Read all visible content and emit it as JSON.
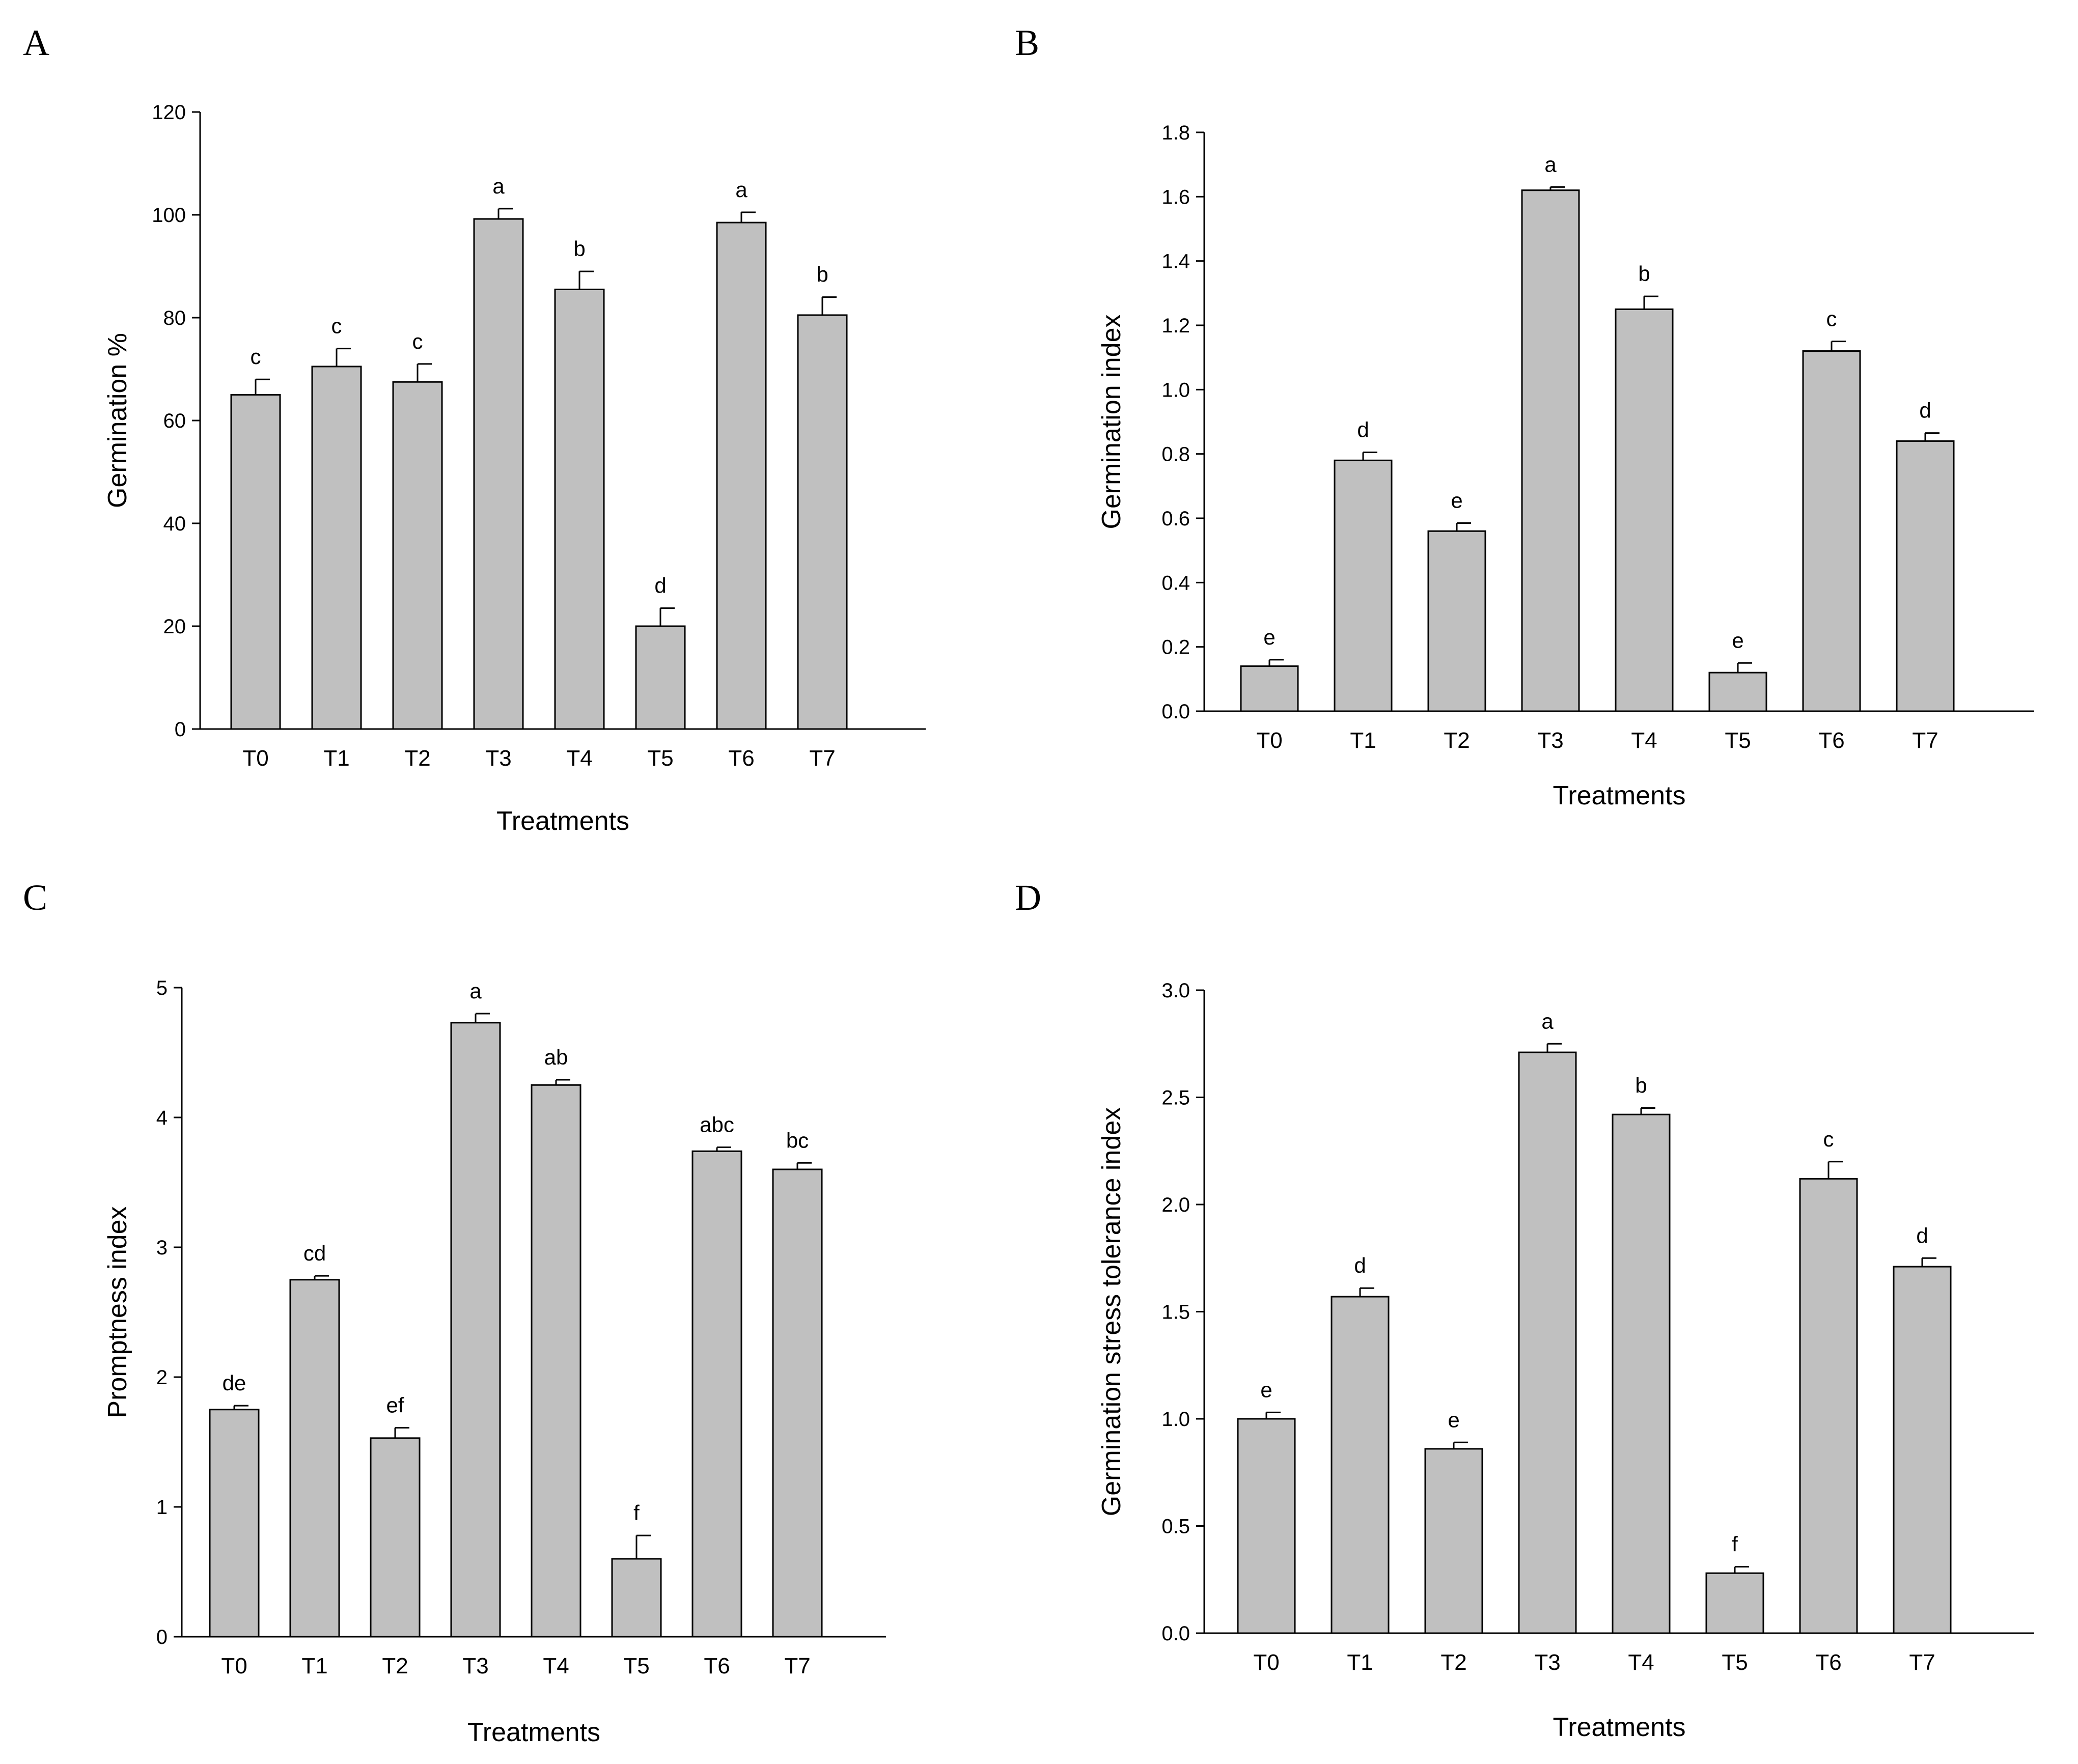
{
  "chart_data": [
    {
      "panel": "A",
      "type": "bar",
      "title": "",
      "xlabel": "Treatments",
      "ylabel": "Germination %",
      "categories": [
        "T0",
        "T1",
        "T2",
        "T3",
        "T4",
        "T5",
        "T6",
        "T7"
      ],
      "values": [
        65,
        70.5,
        67.5,
        99.2,
        85.5,
        20,
        98.5,
        80.5
      ],
      "errors": [
        3,
        3.5,
        3.5,
        2,
        3.5,
        3.5,
        2,
        3.5
      ],
      "letters": [
        "c",
        "c",
        "c",
        "a",
        "b",
        "d",
        "a",
        "b"
      ],
      "ylim": [
        0,
        120
      ],
      "yticks": [
        0,
        20,
        40,
        60,
        80,
        100,
        120
      ],
      "ytick_labels": [
        "0",
        "20",
        "40",
        "60",
        "80",
        "100",
        "120"
      ],
      "grid": false
    },
    {
      "panel": "B",
      "type": "bar",
      "title": "",
      "xlabel": "Treatments",
      "ylabel": "Germination index",
      "categories": [
        "T0",
        "T1",
        "T2",
        "T3",
        "T4",
        "T5",
        "T6",
        "T7"
      ],
      "values": [
        0.14,
        0.78,
        0.56,
        1.62,
        1.25,
        0.12,
        1.12,
        0.84
      ],
      "errors": [
        0.02,
        0.025,
        0.025,
        0.01,
        0.04,
        0.03,
        0.03,
        0.025
      ],
      "letters": [
        "e",
        "d",
        "e",
        "a",
        "b",
        "e",
        "c",
        "d"
      ],
      "ylim": [
        0,
        1.8
      ],
      "yticks": [
        0,
        0.2,
        0.4,
        0.6,
        0.8,
        1.0,
        1.2,
        1.4,
        1.6,
        1.8
      ],
      "ytick_labels": [
        "0.0",
        "0.2",
        "0.4",
        "0.6",
        "0.8",
        "1.0",
        "1.2",
        "1.4",
        "1.6",
        "1.8"
      ],
      "grid": false
    },
    {
      "panel": "C",
      "type": "bar",
      "title": "",
      "xlabel": "Treatments",
      "ylabel": "Promptness index",
      "categories": [
        "T0",
        "T1",
        "T2",
        "T3",
        "T4",
        "T5",
        "T6",
        "T7"
      ],
      "values": [
        1.75,
        2.75,
        1.53,
        4.73,
        4.25,
        0.6,
        3.74,
        3.6
      ],
      "errors": [
        0.03,
        0.03,
        0.08,
        0.07,
        0.04,
        0.18,
        0.03,
        0.05
      ],
      "letters": [
        "de",
        "cd",
        "ef",
        "a",
        "ab",
        "f",
        "abc",
        "bc"
      ],
      "ylim": [
        0,
        5
      ],
      "yticks": [
        0,
        1,
        2,
        3,
        4,
        5
      ],
      "ytick_labels": [
        "0",
        "1",
        "2",
        "3",
        "4",
        "5"
      ],
      "grid": false
    },
    {
      "panel": "D",
      "type": "bar",
      "title": "",
      "xlabel": "Treatments",
      "ylabel": "Germination stress tolerance index",
      "categories": [
        "T0",
        "T1",
        "T2",
        "T3",
        "T4",
        "T5",
        "T6",
        "T7"
      ],
      "values": [
        1.0,
        1.57,
        0.86,
        2.71,
        2.42,
        0.28,
        2.12,
        1.71
      ],
      "errors": [
        0.03,
        0.04,
        0.03,
        0.04,
        0.03,
        0.03,
        0.08,
        0.04
      ],
      "letters": [
        "e",
        "d",
        "e",
        "a",
        "b",
        "f",
        "c",
        "d"
      ],
      "ylim": [
        0,
        3.0
      ],
      "yticks": [
        0,
        0.5,
        1.0,
        1.5,
        2.0,
        2.5,
        3.0
      ],
      "ytick_labels": [
        "0.0",
        "0.5",
        "1.0",
        "1.5",
        "2.0",
        "2.5",
        "3.0"
      ],
      "grid": false
    }
  ]
}
